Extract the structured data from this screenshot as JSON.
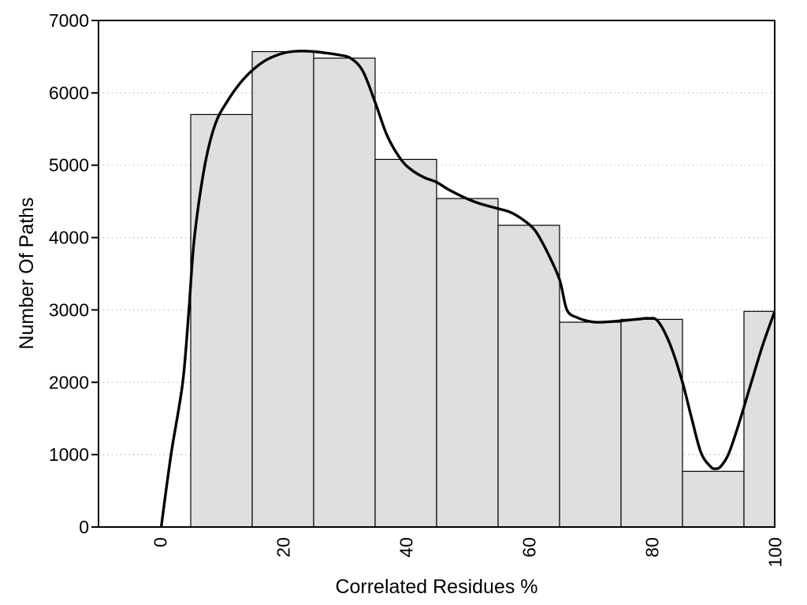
{
  "chart_data": {
    "type": "bar",
    "subtype": "histogram-with-smooth-curve",
    "title": "",
    "xlabel": "Correlated Residues %",
    "ylabel": "Number Of Paths",
    "xlim": [
      -10,
      100
    ],
    "ylim": [
      0,
      7000
    ],
    "x_ticks": [
      0,
      20,
      40,
      60,
      80,
      100
    ],
    "y_ticks": [
      0,
      1000,
      2000,
      3000,
      4000,
      5000,
      6000,
      7000
    ],
    "grid": "horizontal-dotted",
    "legend": "none",
    "bin_width": 10,
    "categories": [
      10,
      20,
      30,
      40,
      50,
      60,
      70,
      80,
      90,
      100
    ],
    "values": [
      5700,
      6570,
      6480,
      5080,
      4540,
      4170,
      2830,
      2870,
      770,
      2980
    ],
    "series": [
      {
        "name": "smooth-curve",
        "points": [
          [
            0.2,
            0
          ],
          [
            1.8,
            1000
          ],
          [
            3.7,
            2000
          ],
          [
            4.7,
            3000
          ],
          [
            5.6,
            4000
          ],
          [
            7.3,
            5000
          ],
          [
            9,
            5570
          ],
          [
            11,
            5890
          ],
          [
            13,
            6130
          ],
          [
            15,
            6310
          ],
          [
            17,
            6440
          ],
          [
            19,
            6520
          ],
          [
            21,
            6565
          ],
          [
            23,
            6578
          ],
          [
            25,
            6570
          ],
          [
            27,
            6550
          ],
          [
            29,
            6525
          ],
          [
            31,
            6480
          ],
          [
            33,
            6300
          ],
          [
            35,
            5870
          ],
          [
            37,
            5400
          ],
          [
            39.2,
            5080
          ],
          [
            41,
            4930
          ],
          [
            43,
            4830
          ],
          [
            45,
            4765
          ],
          [
            47,
            4660
          ],
          [
            49.6,
            4550
          ],
          [
            52,
            4470
          ],
          [
            55,
            4400
          ],
          [
            57,
            4350
          ],
          [
            59,
            4250
          ],
          [
            61,
            4100
          ],
          [
            63,
            3800
          ],
          [
            65,
            3420
          ],
          [
            66.2,
            3000
          ],
          [
            68,
            2890
          ],
          [
            70.3,
            2835
          ],
          [
            72,
            2832
          ],
          [
            74,
            2842
          ],
          [
            76,
            2858
          ],
          [
            78,
            2874
          ],
          [
            79.5,
            2884
          ],
          [
            81,
            2845
          ],
          [
            83,
            2520
          ],
          [
            85,
            2000
          ],
          [
            86.5,
            1500
          ],
          [
            88,
            1030
          ],
          [
            89.5,
            840
          ],
          [
            90.3,
            805
          ],
          [
            91.2,
            835
          ],
          [
            92.5,
            1010
          ],
          [
            94,
            1380
          ],
          [
            96.2,
            2000
          ],
          [
            98,
            2500
          ],
          [
            100,
            2980
          ]
        ]
      }
    ],
    "colors": {
      "bar_fill": "#dfdfdf",
      "bar_stroke": "#000000",
      "curve": "#000000",
      "grid": "#bdbdbd",
      "frame": "#000000",
      "background": "#ffffff",
      "text": "#000000"
    }
  }
}
